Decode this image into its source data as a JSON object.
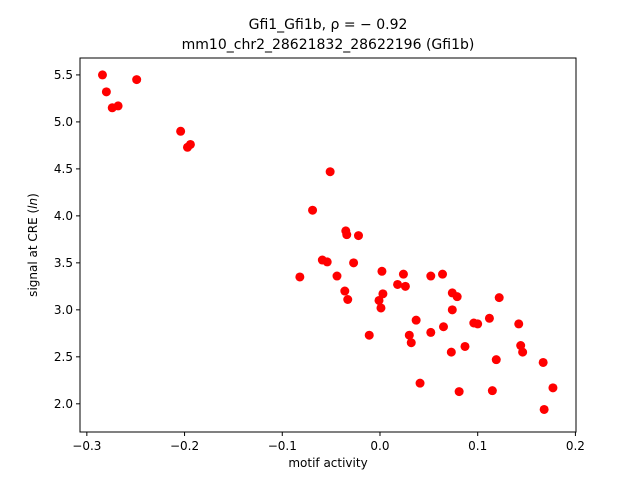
{
  "chart_data": {
    "type": "scatter",
    "title_line1": "Gfi1_Gfi1b, ρ = − 0.92",
    "title_line2": "mm10_chr2_28621832_28622196 (Gfi1b)",
    "xlabel": "motif activity",
    "ylabel_prefix": "signal at CRE (",
    "ylabel_italic": "ln",
    "ylabel_suffix": ")",
    "xlim": [
      -0.307,
      0.2006
    ],
    "ylim": [
      1.7,
      5.68
    ],
    "xticks": [
      -0.3,
      -0.2,
      -0.1,
      0.0,
      0.1,
      0.2
    ],
    "xtick_labels": [
      "−0.3",
      "−0.2",
      "−0.1",
      "0.0",
      "0.1",
      "0.2"
    ],
    "yticks": [
      2.0,
      2.5,
      3.0,
      3.5,
      4.0,
      4.5,
      5.0,
      5.5
    ],
    "ytick_labels": [
      "2.0",
      "2.5",
      "3.0",
      "3.5",
      "4.0",
      "4.5",
      "5.0",
      "5.5"
    ],
    "marker_color": "#ff0000",
    "grid": false,
    "points": [
      [
        -0.284,
        5.5
      ],
      [
        -0.28,
        5.32
      ],
      [
        -0.274,
        5.15
      ],
      [
        -0.268,
        5.17
      ],
      [
        -0.249,
        5.45
      ],
      [
        -0.204,
        4.9
      ],
      [
        -0.197,
        4.73
      ],
      [
        -0.194,
        4.76
      ],
      [
        -0.051,
        4.47
      ],
      [
        -0.069,
        4.06
      ],
      [
        -0.035,
        3.84
      ],
      [
        -0.034,
        3.8
      ],
      [
        -0.022,
        3.79
      ],
      [
        -0.082,
        3.35
      ],
      [
        -0.059,
        3.53
      ],
      [
        -0.054,
        3.51
      ],
      [
        -0.027,
        3.5
      ],
      [
        -0.044,
        3.36
      ],
      [
        -0.036,
        3.2
      ],
      [
        -0.033,
        3.11
      ],
      [
        0.002,
        3.41
      ],
      [
        0.003,
        3.17
      ],
      [
        -0.001,
        3.1
      ],
      [
        0.001,
        3.02
      ],
      [
        -0.011,
        2.73
      ],
      [
        0.018,
        3.27
      ],
      [
        0.024,
        3.38
      ],
      [
        0.026,
        3.25
      ],
      [
        0.037,
        2.89
      ],
      [
        0.03,
        2.73
      ],
      [
        0.032,
        2.65
      ],
      [
        0.041,
        2.22
      ],
      [
        0.052,
        3.36
      ],
      [
        0.064,
        3.38
      ],
      [
        0.052,
        2.76
      ],
      [
        0.065,
        2.82
      ],
      [
        0.074,
        3.18
      ],
      [
        0.079,
        3.14
      ],
      [
        0.074,
        3.0
      ],
      [
        0.073,
        2.55
      ],
      [
        0.081,
        2.13
      ],
      [
        0.087,
        2.61
      ],
      [
        0.096,
        2.86
      ],
      [
        0.1,
        2.85
      ],
      [
        0.112,
        2.91
      ],
      [
        0.122,
        3.13
      ],
      [
        0.119,
        2.47
      ],
      [
        0.115,
        2.14
      ],
      [
        0.142,
        2.85
      ],
      [
        0.144,
        2.62
      ],
      [
        0.146,
        2.55
      ],
      [
        0.167,
        2.44
      ],
      [
        0.168,
        1.94
      ],
      [
        0.177,
        2.17
      ]
    ]
  }
}
